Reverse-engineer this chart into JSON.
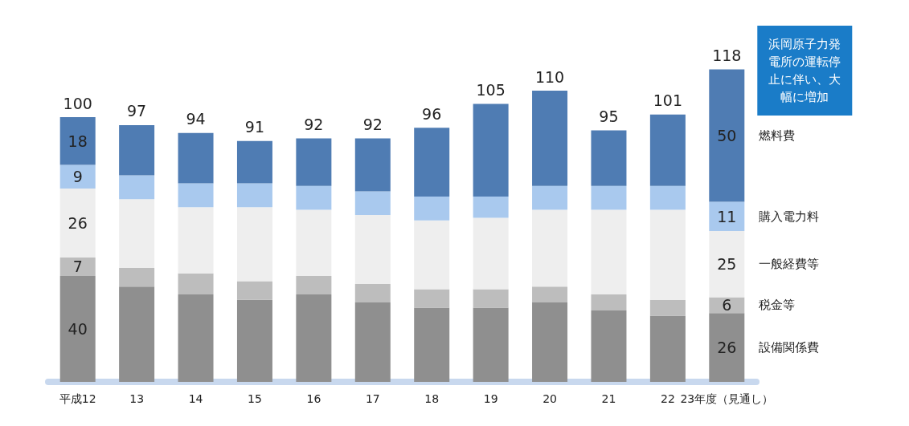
{
  "chart_data": {
    "type": "bar",
    "stacked": true,
    "categories": [
      "平成12",
      "13",
      "14",
      "15",
      "16",
      "17",
      "18",
      "19",
      "20",
      "21",
      "22",
      "23年度（見通し）"
    ],
    "series": [
      {
        "name": "設備関係費",
        "color": "#8f8f8f",
        "values": [
          40,
          36,
          33,
          31,
          33,
          30,
          28,
          28,
          30,
          27,
          25,
          26
        ],
        "value_labels": [
          "40",
          null,
          null,
          null,
          null,
          null,
          null,
          null,
          null,
          null,
          null,
          "26"
        ]
      },
      {
        "name": "税金等",
        "color": "#bdbdbd",
        "values": [
          7,
          7,
          8,
          7,
          7,
          7,
          7,
          7,
          6,
          6,
          6,
          6
        ],
        "value_labels": [
          "7",
          null,
          null,
          null,
          null,
          null,
          null,
          null,
          null,
          null,
          null,
          "6"
        ]
      },
      {
        "name": "一般経費等",
        "color": "#eeeeee",
        "values": [
          26,
          26,
          25,
          28,
          25,
          26,
          26,
          27,
          29,
          32,
          34,
          25
        ],
        "value_labels": [
          "26",
          null,
          null,
          null,
          null,
          null,
          null,
          null,
          null,
          null,
          null,
          "25"
        ]
      },
      {
        "name": "購入電力料",
        "color": "#a9c9ee",
        "values": [
          9,
          9,
          9,
          9,
          9,
          9,
          9,
          8,
          9,
          9,
          9,
          11
        ],
        "value_labels": [
          "9",
          null,
          null,
          null,
          null,
          null,
          null,
          null,
          null,
          null,
          null,
          "11"
        ]
      },
      {
        "name": "燃料費",
        "color": "#4f7cb3",
        "values": [
          18,
          19,
          19,
          16,
          18,
          20,
          26,
          35,
          36,
          21,
          27,
          50
        ],
        "value_labels": [
          "18",
          null,
          null,
          null,
          null,
          null,
          null,
          null,
          null,
          null,
          null,
          "50"
        ]
      }
    ],
    "totals": [
      "100",
      "97",
      "94",
      "91",
      "92",
      "92",
      "96",
      "105",
      "110",
      "95",
      "101",
      "118"
    ],
    "annotations": [
      "浜岡原子力発電所の運転停止に伴い、大幅に増加"
    ]
  }
}
